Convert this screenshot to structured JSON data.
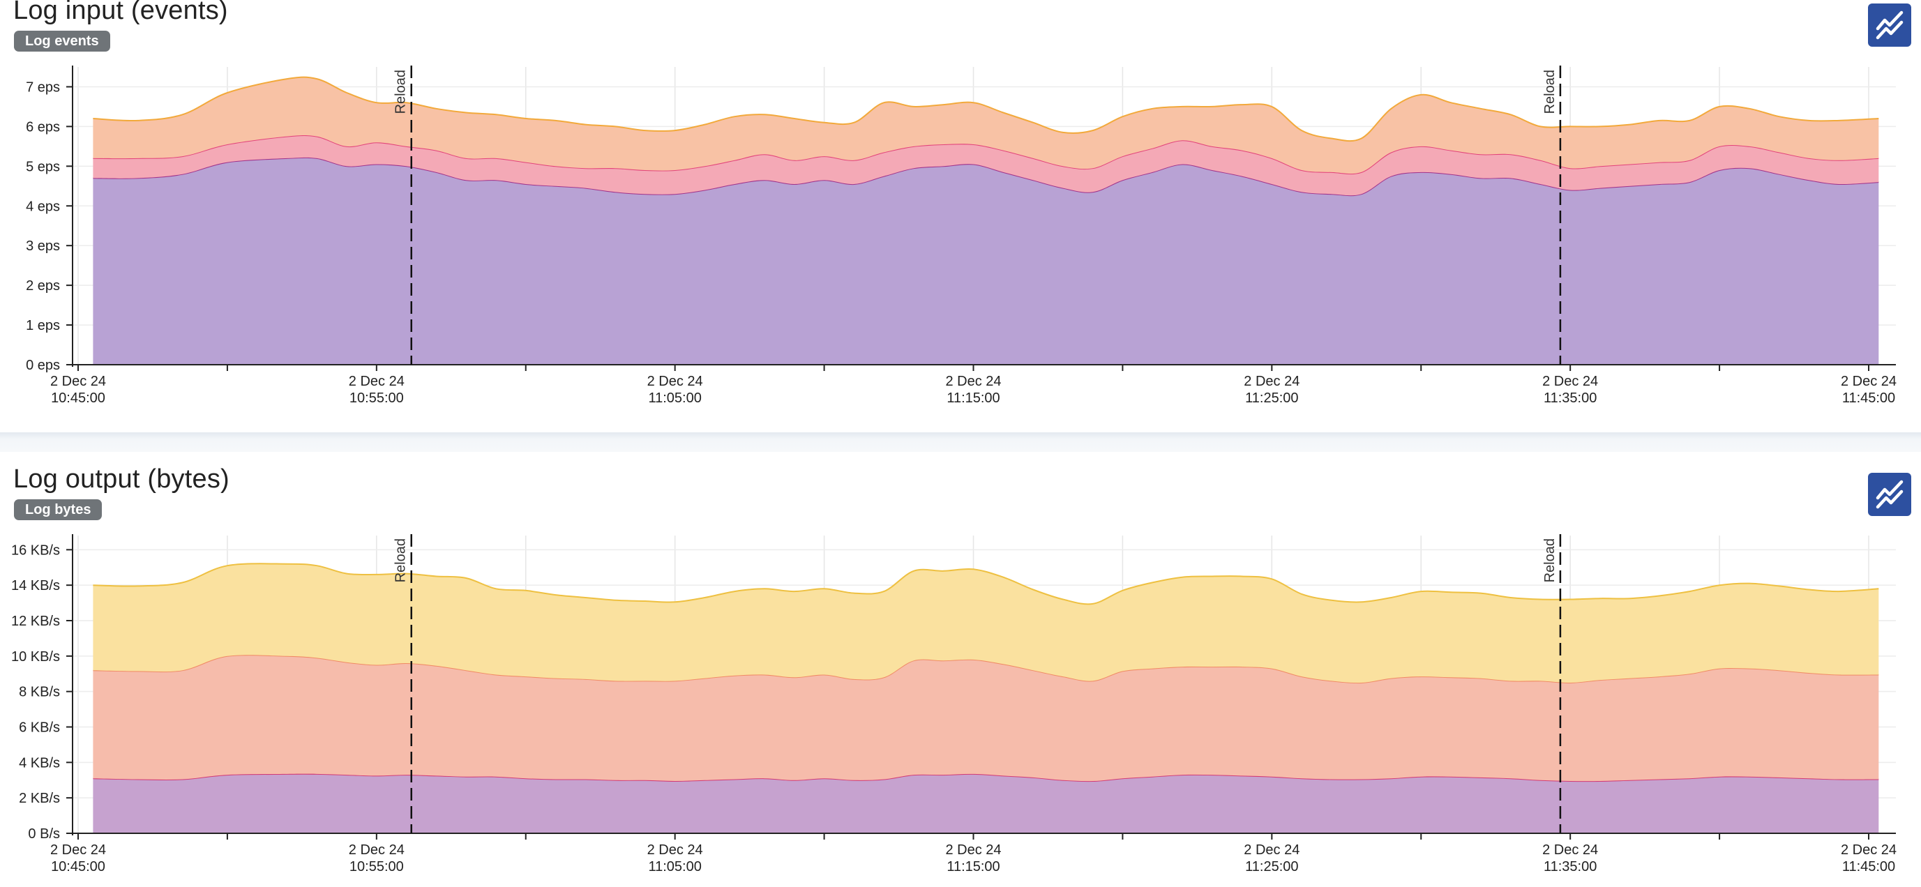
{
  "panels": [
    {
      "title": "Log input (events)",
      "badge": "Log events",
      "toggle_icon": "line-chart-icon",
      "chart_data": {
        "type": "area",
        "stacked": true,
        "x_start": "2024-12-02T10:45:00",
        "x_end": "2024-12-02T11:45:00",
        "x_ticks": [
          {
            "date": "2 Dec 24",
            "time": "10:45:00"
          },
          {
            "date": "2 Dec 24",
            "time": "10:55:00"
          },
          {
            "date": "2 Dec 24",
            "time": "11:05:00"
          },
          {
            "date": "2 Dec 24",
            "time": "11:15:00"
          },
          {
            "date": "2 Dec 24",
            "time": "11:25:00"
          },
          {
            "date": "2 Dec 24",
            "time": "11:35:00"
          },
          {
            "date": "2 Dec 24",
            "time": "11:45:00"
          }
        ],
        "ylim": [
          0,
          7.5
        ],
        "y_ticks": [
          {
            "value": 0,
            "label": "0 eps"
          },
          {
            "value": 1,
            "label": "1 eps"
          },
          {
            "value": 2,
            "label": "2 eps"
          },
          {
            "value": 3,
            "label": "3 eps"
          },
          {
            "value": 4,
            "label": "4 eps"
          },
          {
            "value": 5,
            "label": "5 eps"
          },
          {
            "value": 6,
            "label": "6 eps"
          },
          {
            "value": 7,
            "label": "7 eps"
          }
        ],
        "grid": true,
        "annotations": [
          {
            "time": "10:56:10",
            "label": "Reload"
          },
          {
            "time": "11:34:40",
            "label": "Reload"
          }
        ],
        "x": [
          "10:45:30",
          "10:47:00",
          "10:48:30",
          "10:50:00",
          "10:52:00",
          "10:53:00",
          "10:54:00",
          "10:55:00",
          "10:56:00",
          "10:57:00",
          "10:58:00",
          "10:59:00",
          "11:00:00",
          "11:01:00",
          "11:02:00",
          "11:03:00",
          "11:04:00",
          "11:05:00",
          "11:06:00",
          "11:07:00",
          "11:08:00",
          "11:09:00",
          "11:10:00",
          "11:11:00",
          "11:12:00",
          "11:13:00",
          "11:14:00",
          "11:15:00",
          "11:16:00",
          "11:17:00",
          "11:18:00",
          "11:19:00",
          "11:20:00",
          "11:21:00",
          "11:22:00",
          "11:23:00",
          "11:24:00",
          "11:25:00",
          "11:26:00",
          "11:27:00",
          "11:28:00",
          "11:29:00",
          "11:30:00",
          "11:31:00",
          "11:32:00",
          "11:33:00",
          "11:34:00",
          "11:35:00",
          "11:36:00",
          "11:37:00",
          "11:38:00",
          "11:39:00",
          "11:40:00",
          "11:41:00",
          "11:42:00",
          "11:43:00",
          "11:44:00",
          "11:45:20"
        ],
        "series": [
          {
            "color": "#b8a2d4",
            "line": "#a0338a",
            "values": [
              4.7,
              4.7,
              4.8,
              5.1,
              5.2,
              5.2,
              5.0,
              5.05,
              5.0,
              4.85,
              4.65,
              4.65,
              4.55,
              4.5,
              4.45,
              4.35,
              4.3,
              4.3,
              4.4,
              4.55,
              4.65,
              4.55,
              4.65,
              4.55,
              4.75,
              4.95,
              5.0,
              5.05,
              4.85,
              4.65,
              4.45,
              4.35,
              4.65,
              4.85,
              5.05,
              4.9,
              4.75,
              4.55,
              4.35,
              4.3,
              4.3,
              4.75,
              4.85,
              4.8,
              4.7,
              4.7,
              4.55,
              4.4,
              4.45,
              4.5,
              4.55,
              4.6,
              4.9,
              4.95,
              4.8,
              4.65,
              4.55,
              4.6
            ]
          },
          {
            "color": "#f4a9b6",
            "line": "#e2437a",
            "values": [
              0.5,
              0.5,
              0.45,
              0.45,
              0.55,
              0.55,
              0.5,
              0.55,
              0.5,
              0.55,
              0.55,
              0.55,
              0.55,
              0.5,
              0.5,
              0.6,
              0.6,
              0.6,
              0.6,
              0.6,
              0.65,
              0.6,
              0.6,
              0.6,
              0.6,
              0.55,
              0.55,
              0.5,
              0.55,
              0.55,
              0.55,
              0.6,
              0.6,
              0.6,
              0.6,
              0.6,
              0.65,
              0.65,
              0.55,
              0.55,
              0.55,
              0.6,
              0.65,
              0.6,
              0.6,
              0.6,
              0.6,
              0.55,
              0.55,
              0.55,
              0.55,
              0.55,
              0.6,
              0.55,
              0.55,
              0.55,
              0.6,
              0.6
            ]
          },
          {
            "color": "#f8c2a5",
            "line": "#f2a93b",
            "values": [
              1.0,
              0.95,
              1.05,
              1.3,
              1.45,
              1.45,
              1.35,
              1.0,
              1.1,
              1.05,
              1.15,
              1.1,
              1.1,
              1.15,
              1.1,
              1.05,
              1.0,
              1.0,
              1.05,
              1.1,
              1.0,
              1.05,
              0.85,
              0.95,
              1.25,
              1.0,
              1.0,
              1.05,
              0.95,
              0.9,
              0.85,
              0.95,
              1.0,
              1.0,
              0.85,
              1.0,
              1.15,
              1.3,
              1.0,
              0.85,
              0.85,
              1.1,
              1.3,
              1.2,
              1.15,
              1.0,
              0.85,
              1.05,
              1.0,
              1.0,
              1.05,
              1.0,
              1.0,
              0.95,
              0.9,
              0.95,
              1.0,
              1.0
            ]
          }
        ]
      }
    },
    {
      "title": "Log output (bytes)",
      "badge": "Log bytes",
      "toggle_icon": "line-chart-icon",
      "chart_data": {
        "type": "area",
        "stacked": true,
        "x_start": "2024-12-02T10:45:00",
        "x_end": "2024-12-02T11:45:00",
        "x_ticks": [
          {
            "date": "2 Dec 24",
            "time": "10:45:00"
          },
          {
            "date": "2 Dec 24",
            "time": "10:55:00"
          },
          {
            "date": "2 Dec 24",
            "time": "11:05:00"
          },
          {
            "date": "2 Dec 24",
            "time": "11:15:00"
          },
          {
            "date": "2 Dec 24",
            "time": "11:25:00"
          },
          {
            "date": "2 Dec 24",
            "time": "11:35:00"
          },
          {
            "date": "2 Dec 24",
            "time": "11:45:00"
          }
        ],
        "ylim": [
          0,
          16.8
        ],
        "y_ticks": [
          {
            "value": 0,
            "label": "0 B/s"
          },
          {
            "value": 2,
            "label": "2 KB/s"
          },
          {
            "value": 4,
            "label": "4 KB/s"
          },
          {
            "value": 6,
            "label": "6 KB/s"
          },
          {
            "value": 8,
            "label": "8 KB/s"
          },
          {
            "value": 10,
            "label": "10 KB/s"
          },
          {
            "value": 12,
            "label": "12 KB/s"
          },
          {
            "value": 14,
            "label": "14 KB/s"
          },
          {
            "value": 16,
            "label": "16 KB/s"
          }
        ],
        "grid": true,
        "annotations": [
          {
            "time": "10:56:10",
            "label": "Reload"
          },
          {
            "time": "11:34:40",
            "label": "Reload"
          }
        ],
        "x": [
          "10:45:30",
          "10:47:00",
          "10:48:30",
          "10:50:00",
          "10:52:00",
          "10:53:00",
          "10:54:00",
          "10:55:00",
          "10:56:00",
          "10:57:00",
          "10:58:00",
          "10:59:00",
          "11:00:00",
          "11:01:00",
          "11:02:00",
          "11:03:00",
          "11:04:00",
          "11:05:00",
          "11:06:00",
          "11:07:00",
          "11:08:00",
          "11:09:00",
          "11:10:00",
          "11:11:00",
          "11:12:00",
          "11:13:00",
          "11:14:00",
          "11:15:00",
          "11:16:00",
          "11:17:00",
          "11:18:00",
          "11:19:00",
          "11:20:00",
          "11:21:00",
          "11:22:00",
          "11:23:00",
          "11:24:00",
          "11:25:00",
          "11:26:00",
          "11:27:00",
          "11:28:00",
          "11:29:00",
          "11:30:00",
          "11:31:00",
          "11:32:00",
          "11:33:00",
          "11:34:00",
          "11:35:00",
          "11:36:00",
          "11:37:00",
          "11:38:00",
          "11:39:00",
          "11:40:00",
          "11:41:00",
          "11:42:00",
          "11:43:00",
          "11:44:00",
          "11:45:20"
        ],
        "series": [
          {
            "color": "#c6a2cf",
            "line": "#d23b74",
            "values": [
              3.1,
              3.05,
              3.05,
              3.3,
              3.35,
              3.35,
              3.3,
              3.25,
              3.3,
              3.25,
              3.2,
              3.2,
              3.1,
              3.05,
              3.05,
              3.0,
              3.0,
              2.95,
              3.0,
              3.05,
              3.1,
              3.0,
              3.1,
              3.0,
              3.05,
              3.3,
              3.3,
              3.35,
              3.25,
              3.15,
              3.0,
              2.95,
              3.1,
              3.2,
              3.3,
              3.3,
              3.25,
              3.2,
              3.1,
              3.05,
              3.05,
              3.1,
              3.2,
              3.2,
              3.15,
              3.1,
              3.0,
              2.95,
              2.95,
              3.0,
              3.05,
              3.1,
              3.2,
              3.2,
              3.15,
              3.1,
              3.05,
              3.05
            ]
          },
          {
            "color": "#f6bcab",
            "line": "#f08a64",
            "values": [
              6.1,
              6.1,
              6.15,
              6.7,
              6.65,
              6.55,
              6.35,
              6.25,
              6.3,
              6.2,
              6.0,
              5.75,
              5.75,
              5.7,
              5.65,
              5.6,
              5.6,
              5.65,
              5.75,
              5.85,
              5.85,
              5.8,
              5.85,
              5.7,
              5.75,
              6.45,
              6.45,
              6.45,
              6.3,
              6.05,
              5.85,
              5.65,
              6.05,
              6.1,
              6.1,
              6.1,
              6.15,
              6.1,
              5.75,
              5.55,
              5.45,
              5.65,
              5.65,
              5.6,
              5.6,
              5.5,
              5.6,
              5.55,
              5.7,
              5.75,
              5.8,
              5.9,
              6.1,
              6.1,
              6.05,
              5.95,
              5.9,
              5.9
            ]
          },
          {
            "color": "#fae19f",
            "line": "#eec041",
            "values": [
              4.8,
              4.8,
              4.95,
              5.1,
              5.2,
              5.2,
              5.0,
              5.1,
              5.05,
              5.05,
              5.2,
              4.85,
              4.85,
              4.7,
              4.6,
              4.55,
              4.5,
              4.45,
              4.55,
              4.75,
              4.85,
              4.85,
              4.85,
              4.85,
              4.85,
              5.05,
              5.05,
              5.1,
              4.9,
              4.55,
              4.35,
              4.35,
              4.55,
              4.85,
              5.05,
              5.1,
              5.1,
              5.05,
              4.65,
              4.55,
              4.55,
              4.55,
              4.8,
              4.8,
              4.8,
              4.7,
              4.6,
              4.7,
              4.6,
              4.5,
              4.55,
              4.65,
              4.7,
              4.8,
              4.75,
              4.7,
              4.7,
              4.85
            ]
          }
        ]
      }
    }
  ]
}
